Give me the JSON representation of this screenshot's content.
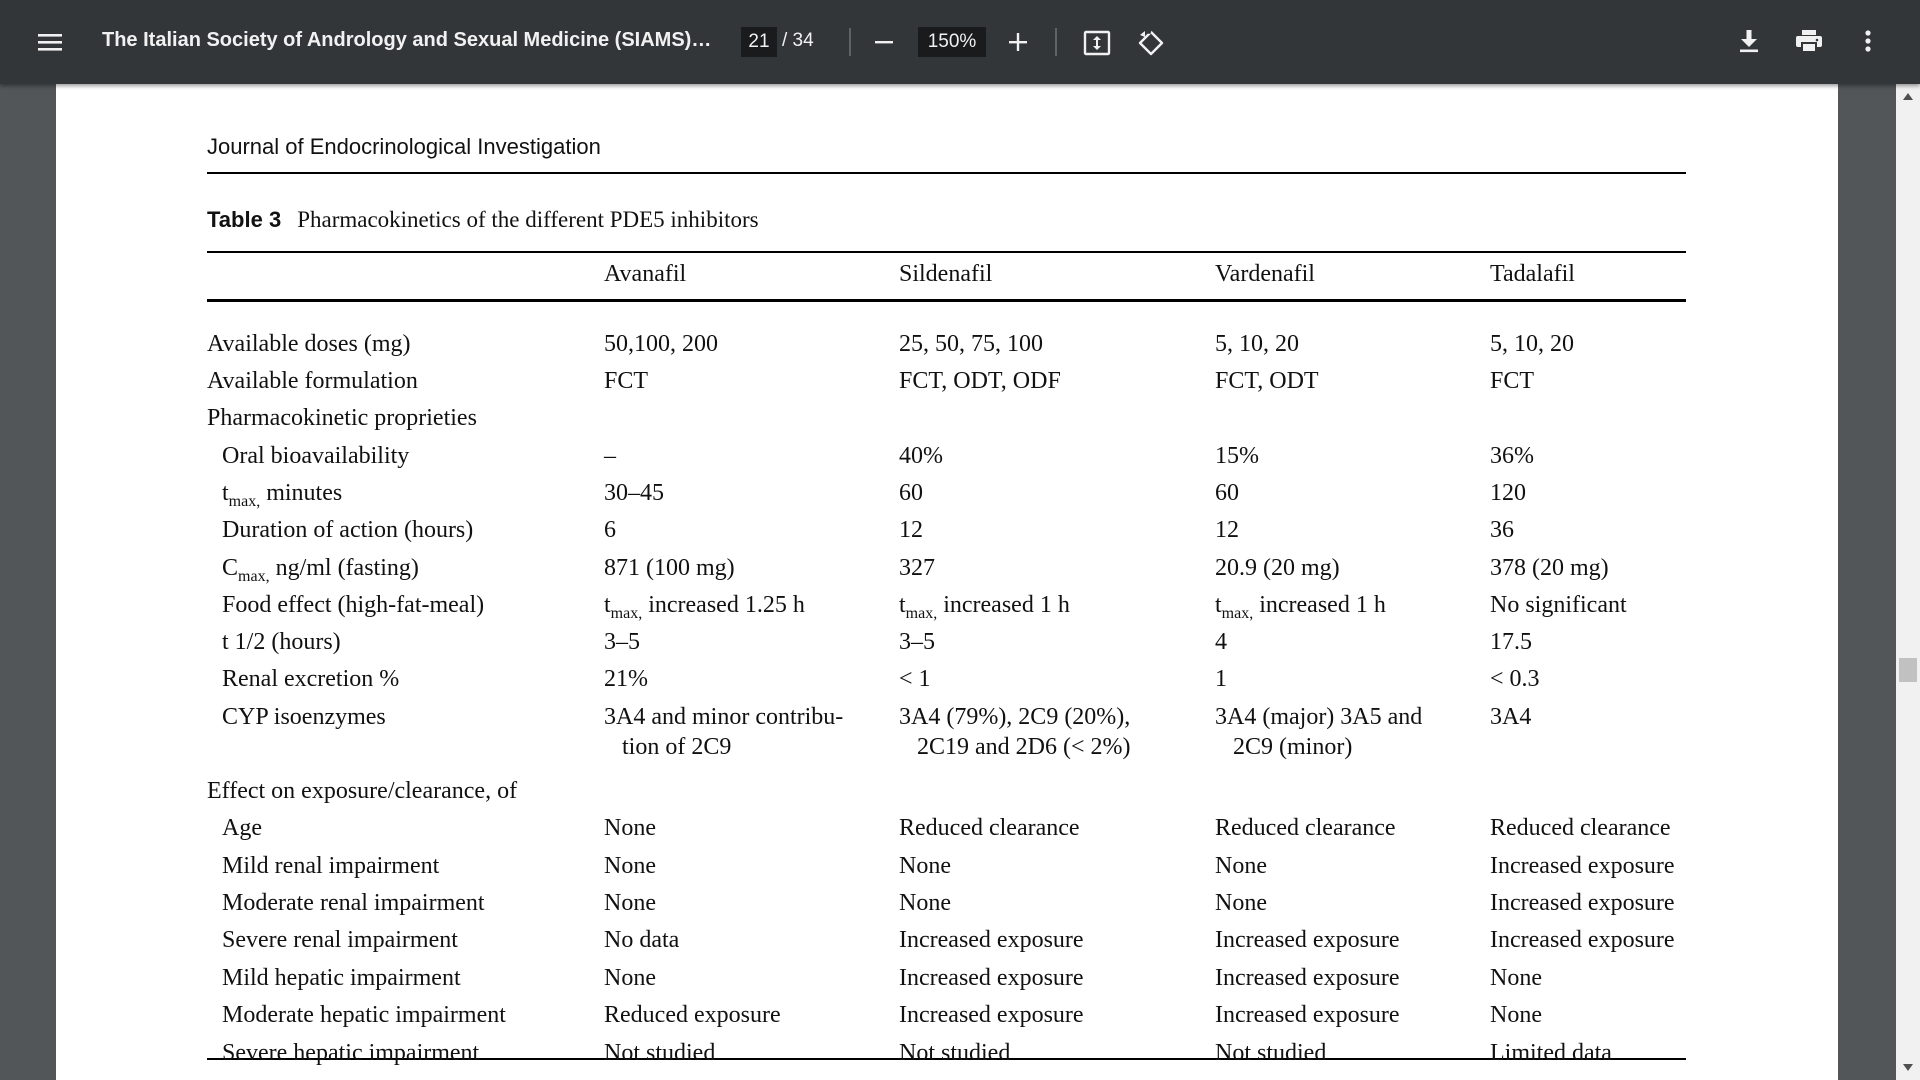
{
  "toolbar": {
    "menu_icon": "menu-icon",
    "title": "The Italian Society of Andrology and Sexual Medicine (SIAMS), ...",
    "page_current": "21",
    "page_total": "/ 34",
    "zoom": "150%",
    "icons": {
      "zoom_out": "minus-icon",
      "zoom_in": "plus-icon",
      "fit": "fit-to-page-icon",
      "rotate": "rotate-icon",
      "download": "download-icon",
      "print": "print-icon",
      "more": "more-vert-icon"
    }
  },
  "document": {
    "journal": "Journal of Endocrinological Investigation",
    "table_label": "Table 3",
    "table_title": "Pharmacokinetics of the different PDE5 inhibitors",
    "columns": [
      "Avanafil",
      "Sildenafil",
      "Vardenafil",
      "Tadalafil"
    ],
    "rows": [
      {
        "label": "Available doses (mg)",
        "values": [
          "50,100, 200",
          "25, 50, 75, 100",
          "5, 10, 20",
          "5, 10, 20"
        ]
      },
      {
        "label": "Available formulation",
        "values": [
          "FCT",
          "FCT, ODT, ODF",
          "FCT, ODT",
          "FCT"
        ]
      },
      {
        "label": "Pharmacokinetic proprieties",
        "values": [
          "",
          "",
          "",
          ""
        ]
      },
      {
        "label": "Oral bioavailability",
        "values": [
          "–",
          "40%",
          "15%",
          "36%"
        ]
      },
      {
        "label_main": "t",
        "label_sub": "max,",
        "label_rest": " minutes",
        "values": [
          "30–45",
          "60",
          "60",
          "120"
        ]
      },
      {
        "label": "Duration of action (hours)",
        "values": [
          "6",
          "12",
          "12",
          "36"
        ]
      },
      {
        "label_main": "C",
        "label_sub": "max,",
        "label_rest": " ng/ml (fasting)",
        "values": [
          "871 (100 mg)",
          "327",
          "20.9 (20 mg)",
          "378 (20 mg)"
        ]
      },
      {
        "label": "Food effect (high-fat-meal)",
        "values_food": [
          {
            "main": "t",
            "sub": "max,",
            "rest": " increased 1.25 h"
          },
          {
            "main": "t",
            "sub": "max,",
            "rest": " increased 1 h"
          },
          {
            "main": "t",
            "sub": "max,",
            "rest": " increased 1 h"
          }
        ],
        "last": "No significant"
      },
      {
        "label": "t 1/2 (hours)",
        "values": [
          "3–5",
          "3–5",
          "4",
          "17.5"
        ]
      },
      {
        "label": "Renal excretion %",
        "values": [
          "21%",
          "< 1",
          "1",
          "< 0.3"
        ]
      },
      {
        "label": "CYP isoenzymes",
        "values": [
          "3A4 and minor contribu-",
          "3A4 (79%), 2C9 (20%),",
          "3A4 (major) 3A5 and",
          "3A4"
        ],
        "values2": [
          "tion of 2C9",
          "2C19 and 2D6 (< 2%)",
          "2C9 (minor)",
          ""
        ]
      },
      {
        "label": "Effect on exposure/clearance, of",
        "values": [
          "",
          "",
          "",
          ""
        ]
      },
      {
        "label": "Age",
        "values": [
          "None",
          "Reduced clearance",
          "Reduced clearance",
          "Reduced clearance"
        ]
      },
      {
        "label": "Mild renal impairment",
        "values": [
          "None",
          "None",
          "None",
          "Increased exposure"
        ]
      },
      {
        "label": "Moderate renal impairment",
        "values": [
          "None",
          "None",
          "None",
          "Increased exposure"
        ]
      },
      {
        "label": "Severe renal impairment",
        "values": [
          "No data",
          "Increased exposure",
          "Increased exposure",
          "Increased exposure"
        ]
      },
      {
        "label": "Mild hepatic impairment",
        "values": [
          "None",
          "Increased exposure",
          "Increased exposure",
          "None"
        ]
      },
      {
        "label": "Moderate hepatic impairment",
        "values": [
          "Reduced exposure",
          "Increased exposure",
          "Increased exposure",
          "None"
        ]
      },
      {
        "label": "Severe hepatic impairment",
        "values": [
          "Not studied",
          "Not studied",
          "Not studied",
          "Limited data"
        ]
      }
    ]
  }
}
